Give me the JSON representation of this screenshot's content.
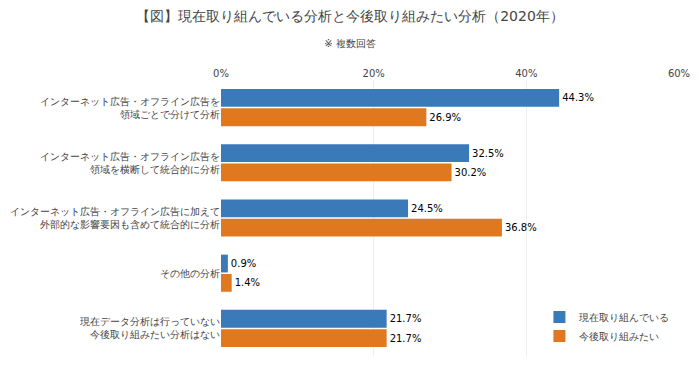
{
  "chart_data": {
    "type": "bar",
    "orientation": "horizontal",
    "title": "【図】現在取り組んでいる分析と今後取り組みたい分析（2020年）",
    "subtitle": "※ 複数回答",
    "categories": [
      "インターネット広告・オフライン広告を\n領域ごとで分けて分析",
      "インターネット広告・オフライン広告を\n領域を横断して統合的に分析",
      "インターネット広告・オフライン広告に加えて\n外部的な影響要因も含めて統合的に分析",
      "その他の分析",
      "現在データ分析は行っていない\n今後取り組みたい分析はない"
    ],
    "series": [
      {
        "name": "現在取り組んでいる",
        "color": "#3a7ab8",
        "values": [
          44.3,
          32.5,
          24.5,
          0.9,
          21.7
        ],
        "value_labels": [
          "44.3%",
          "32.5%",
          "24.5%",
          "0.9%",
          "21.7%"
        ]
      },
      {
        "name": "今後取り組みたい",
        "color": "#e07820",
        "values": [
          26.9,
          30.2,
          36.8,
          1.4,
          21.7
        ],
        "value_labels": [
          "26.9%",
          "30.2%",
          "36.8%",
          "1.4%",
          "21.7%"
        ]
      }
    ],
    "xlim": [
      0,
      60
    ],
    "xticks": [
      {
        "value": 0,
        "label": "0%"
      },
      {
        "value": 20,
        "label": "20%"
      },
      {
        "value": 40,
        "label": "40%"
      },
      {
        "value": 60,
        "label": "60%"
      }
    ],
    "grid": true,
    "legend": "lower right",
    "data_labels": true
  }
}
